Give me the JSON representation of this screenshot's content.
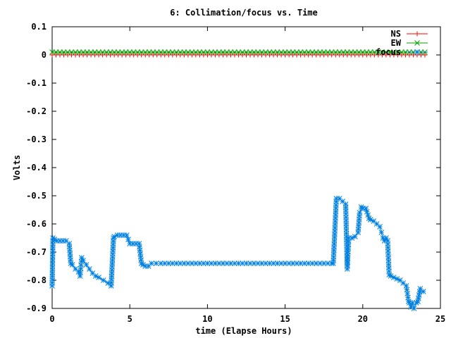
{
  "chart_data": {
    "type": "line",
    "title": "6: Collimation/focus vs. Time",
    "xlabel": "time (Elapse Hours)",
    "ylabel": "Volts",
    "xlim": [
      0,
      25
    ],
    "ylim": [
      -0.9,
      0.1
    ],
    "x_ticks": [
      "0",
      "5",
      "10",
      "15",
      "20",
      "25"
    ],
    "y_ticks": [
      "0.1",
      "0",
      "-0.1",
      "-0.2",
      "-0.3",
      "-0.4",
      "-0.5",
      "-0.6",
      "-0.7",
      "-0.8",
      "-0.9"
    ],
    "grid": false,
    "legend_position": "top-right",
    "series": [
      {
        "name": "NS",
        "color": "#ff0000",
        "marker": "plus",
        "x": [
          0,
          1,
          2,
          3,
          4,
          5,
          6,
          7,
          8,
          9,
          10,
          11,
          12,
          13,
          14,
          15,
          16,
          17,
          18,
          19,
          20,
          21,
          22,
          23,
          24
        ],
        "y": [
          0.0,
          0.0,
          0.0,
          0.0,
          0.0,
          0.0,
          0.0,
          0.0,
          0.0,
          0.0,
          0.0,
          0.0,
          0.0,
          0.0,
          0.0,
          0.0,
          0.0,
          0.0,
          0.0,
          0.0,
          0.0,
          0.0,
          0.0,
          0.0,
          0.0
        ]
      },
      {
        "name": "EW",
        "color": "#00a000",
        "marker": "cross",
        "x": [
          0,
          1,
          2,
          3,
          4,
          5,
          6,
          7,
          8,
          9,
          10,
          11,
          12,
          13,
          14,
          15,
          16,
          17,
          18,
          19,
          20,
          21,
          22,
          23,
          24
        ],
        "y": [
          0.01,
          0.01,
          0.01,
          0.01,
          0.01,
          0.01,
          0.01,
          0.01,
          0.01,
          0.01,
          0.01,
          0.01,
          0.01,
          0.01,
          0.01,
          0.01,
          0.01,
          0.01,
          0.01,
          0.01,
          0.01,
          0.01,
          0.01,
          0.01,
          0.01
        ]
      },
      {
        "name": "focus",
        "color": "#0080e0",
        "marker": "star",
        "x": [
          0.0,
          0.05,
          0.15,
          0.3,
          0.5,
          0.7,
          0.9,
          1.1,
          1.2,
          1.3,
          1.5,
          1.7,
          1.8,
          1.9,
          2.0,
          2.2,
          2.4,
          2.6,
          2.8,
          3.0,
          3.3,
          3.6,
          3.8,
          3.95,
          4.0,
          4.2,
          4.4,
          4.6,
          4.8,
          5.0,
          5.2,
          5.4,
          5.6,
          5.75,
          5.85,
          6.0,
          6.2,
          6.4,
          7.0,
          8.0,
          9.0,
          10.0,
          11.0,
          12.0,
          13.0,
          14.0,
          15.0,
          16.0,
          17.0,
          18.0,
          18.1,
          18.3,
          18.5,
          18.7,
          18.9,
          19.0,
          19.1,
          19.3,
          19.5,
          19.7,
          19.8,
          19.9,
          20.0,
          20.2,
          20.4,
          20.5,
          20.7,
          20.9,
          21.1,
          21.2,
          21.3,
          21.4,
          21.5,
          21.6,
          21.7,
          21.8,
          22.0,
          22.2,
          22.4,
          22.6,
          22.8,
          22.95,
          23.0,
          23.1,
          23.2,
          23.3,
          23.45,
          23.55,
          23.7,
          23.9
        ],
        "y": [
          -0.82,
          -0.65,
          -0.655,
          -0.66,
          -0.66,
          -0.66,
          -0.66,
          -0.67,
          -0.74,
          -0.745,
          -0.76,
          -0.77,
          -0.785,
          -0.72,
          -0.73,
          -0.745,
          -0.76,
          -0.775,
          -0.785,
          -0.79,
          -0.8,
          -0.81,
          -0.82,
          -0.65,
          -0.645,
          -0.64,
          -0.64,
          -0.64,
          -0.64,
          -0.67,
          -0.67,
          -0.67,
          -0.67,
          -0.74,
          -0.745,
          -0.75,
          -0.75,
          -0.74,
          -0.74,
          -0.74,
          -0.74,
          -0.74,
          -0.74,
          -0.74,
          -0.74,
          -0.74,
          -0.74,
          -0.74,
          -0.74,
          -0.74,
          -0.74,
          -0.51,
          -0.51,
          -0.52,
          -0.53,
          -0.76,
          -0.65,
          -0.65,
          -0.645,
          -0.63,
          -0.56,
          -0.54,
          -0.545,
          -0.545,
          -0.58,
          -0.585,
          -0.59,
          -0.6,
          -0.61,
          -0.63,
          -0.65,
          -0.66,
          -0.65,
          -0.66,
          -0.78,
          -0.785,
          -0.79,
          -0.795,
          -0.8,
          -0.81,
          -0.82,
          -0.875,
          -0.88,
          -0.895,
          -0.88,
          -0.9,
          -0.88,
          -0.875,
          -0.83,
          -0.84
        ]
      }
    ]
  }
}
